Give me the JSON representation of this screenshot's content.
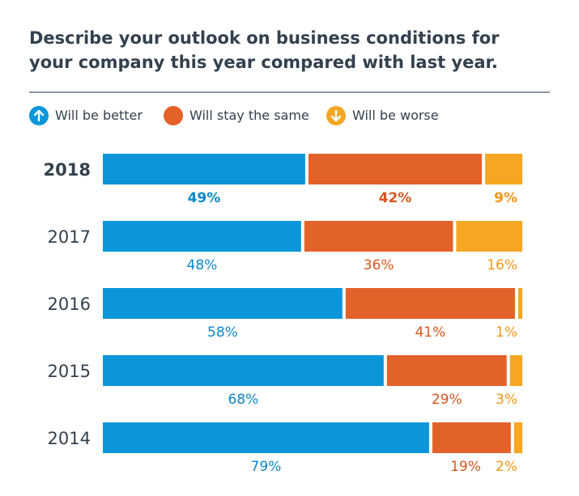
{
  "chart_data": {
    "type": "bar",
    "orientation": "horizontal",
    "stacked": true,
    "title": "Describe your outlook on business conditions for your company this year compared with last year.",
    "categories": [
      "2018",
      "2017",
      "2016",
      "2015",
      "2014"
    ],
    "highlight_category": "2018",
    "series": [
      {
        "name": "Will be better",
        "values": [
          49,
          48,
          58,
          68,
          79
        ],
        "color": "#0a96d8",
        "icon": "arrow-up-icon"
      },
      {
        "name": "Will stay the same",
        "values": [
          42,
          36,
          41,
          29,
          19
        ],
        "color": "#e3622a",
        "icon": "circle-icon"
      },
      {
        "name": "Will be worse",
        "values": [
          9,
          16,
          1,
          3,
          2
        ],
        "color": "#f5a623",
        "icon": "arrow-down-icon"
      }
    ],
    "value_suffix": "%",
    "xlim": [
      0,
      100
    ],
    "legend_position": "top-left",
    "grid": false
  }
}
